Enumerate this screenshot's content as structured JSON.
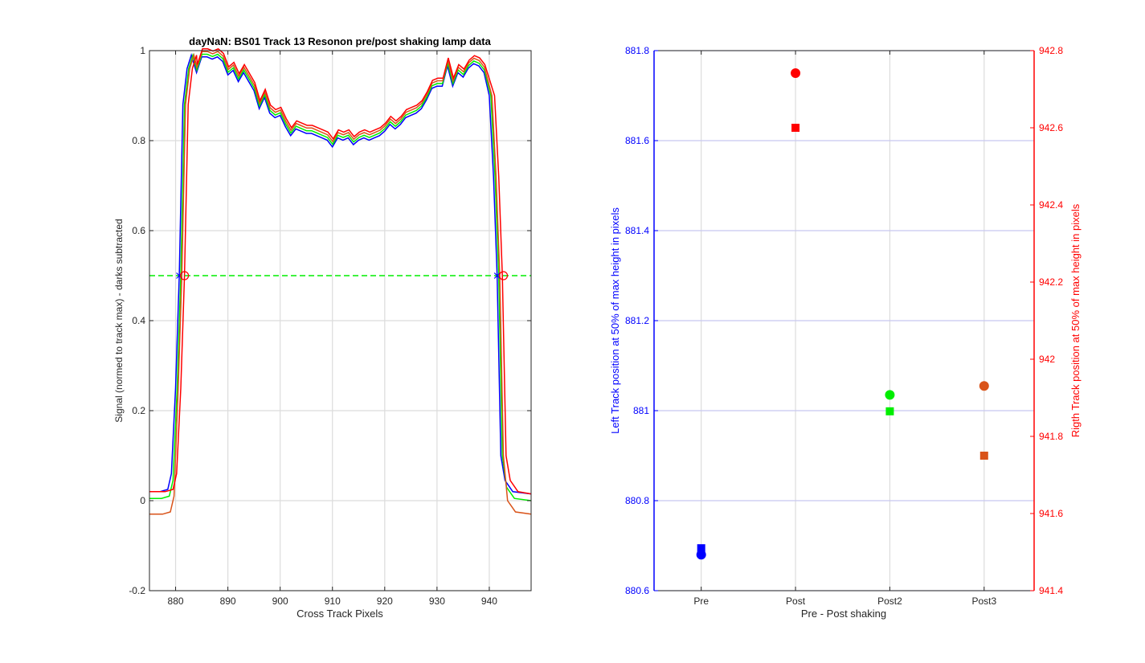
{
  "chart_data": [
    {
      "type": "line",
      "title": "dayNaN: BS01  Track 13 Resonon pre/post shaking lamp data",
      "xlabel": "Cross Track Pixels",
      "ylabel": "Signal (normed to track max) - darks subtracted",
      "xlim": [
        875,
        948
      ],
      "ylim": [
        -0.2,
        1
      ],
      "xticks": [
        880,
        890,
        900,
        910,
        920,
        930,
        940
      ],
      "yticks": [
        -0.2,
        0,
        0.2,
        0.4,
        0.6,
        0.8,
        1
      ],
      "grid": true,
      "threshold": 0.5,
      "threshold_color": "#00ee00",
      "crossings": [
        {
          "color": "#0000ff",
          "x": 880.7,
          "marker": "x"
        },
        {
          "color": "#ff0000",
          "x": 881.7,
          "marker": "o"
        },
        {
          "color": "#0000ff",
          "x": 941.5,
          "marker": "x"
        },
        {
          "color": "#ff0000",
          "x": 942.7,
          "marker": "o"
        }
      ],
      "series": [
        {
          "color": "#0000ff",
          "shift": 0,
          "floor_left": 0.02,
          "floor_right": 0.015
        },
        {
          "color": "#00ee00",
          "shift": 0.3,
          "floor_left": 0.005,
          "floor_right": 0.0
        },
        {
          "color": "#d95319",
          "shift": 0.5,
          "floor_left": -0.03,
          "floor_right": -0.03
        },
        {
          "color": "#ff0000",
          "shift": 1.0,
          "floor_left": 0.02,
          "floor_right": 0.015
        }
      ],
      "plateau": {
        "x": [
          884,
          885,
          886,
          887,
          888,
          889,
          890,
          891,
          892,
          893,
          894,
          895,
          896,
          897,
          898,
          899,
          900,
          901,
          902,
          903,
          904,
          905,
          906,
          907,
          908,
          909,
          910,
          911,
          912,
          913,
          914,
          915,
          916,
          917,
          918,
          919,
          920,
          921,
          922,
          923,
          924,
          925,
          926,
          927,
          928,
          929,
          930,
          931,
          932,
          933,
          934,
          935,
          936,
          937,
          938,
          939
        ],
        "y": [
          0.96,
          0.995,
          0.995,
          0.99,
          0.995,
          0.985,
          0.955,
          0.965,
          0.94,
          0.96,
          0.94,
          0.92,
          0.88,
          0.905,
          0.87,
          0.86,
          0.865,
          0.84,
          0.82,
          0.835,
          0.83,
          0.825,
          0.825,
          0.82,
          0.815,
          0.81,
          0.795,
          0.815,
          0.81,
          0.815,
          0.8,
          0.81,
          0.815,
          0.81,
          0.815,
          0.82,
          0.83,
          0.845,
          0.835,
          0.845,
          0.86,
          0.865,
          0.87,
          0.88,
          0.9,
          0.925,
          0.93,
          0.93,
          0.975,
          0.93,
          0.96,
          0.95,
          0.97,
          0.98,
          0.975,
          0.96
        ]
      }
    },
    {
      "type": "scatter",
      "xlabel": "Pre - Post shaking",
      "ylabel_left": "Left Track position at 50% of max height in pixels",
      "ylabel_right": "Rigth Track position at 50% of max height in pixels",
      "categories": [
        "Pre",
        "Post",
        "Post2",
        "Post3"
      ],
      "ylim_left": [
        880.6,
        881.8
      ],
      "ylim_right": [
        941.4,
        942.8
      ],
      "yticks_left": [
        880.6,
        880.8,
        881,
        881.2,
        881.4,
        881.6,
        881.8
      ],
      "yticks_right": [
        941.4,
        941.6,
        941.8,
        942,
        942.2,
        942.4,
        942.6,
        942.8
      ],
      "left_axis_color": "#0000ff",
      "right_axis_color": "#ff0000",
      "grid": true,
      "points": [
        {
          "category": "Pre",
          "color": "#0000ff",
          "left": 880.68,
          "right": 941.51
        },
        {
          "category": "Post",
          "color": "#ff0000",
          "left": 881.75,
          "right": 942.6
        },
        {
          "category": "Post2",
          "color": "#00ee00",
          "left": 881.035,
          "right": 941.865
        },
        {
          "category": "Post3",
          "color": "#d95319",
          "left": 881.055,
          "right": 941.75
        }
      ]
    }
  ]
}
